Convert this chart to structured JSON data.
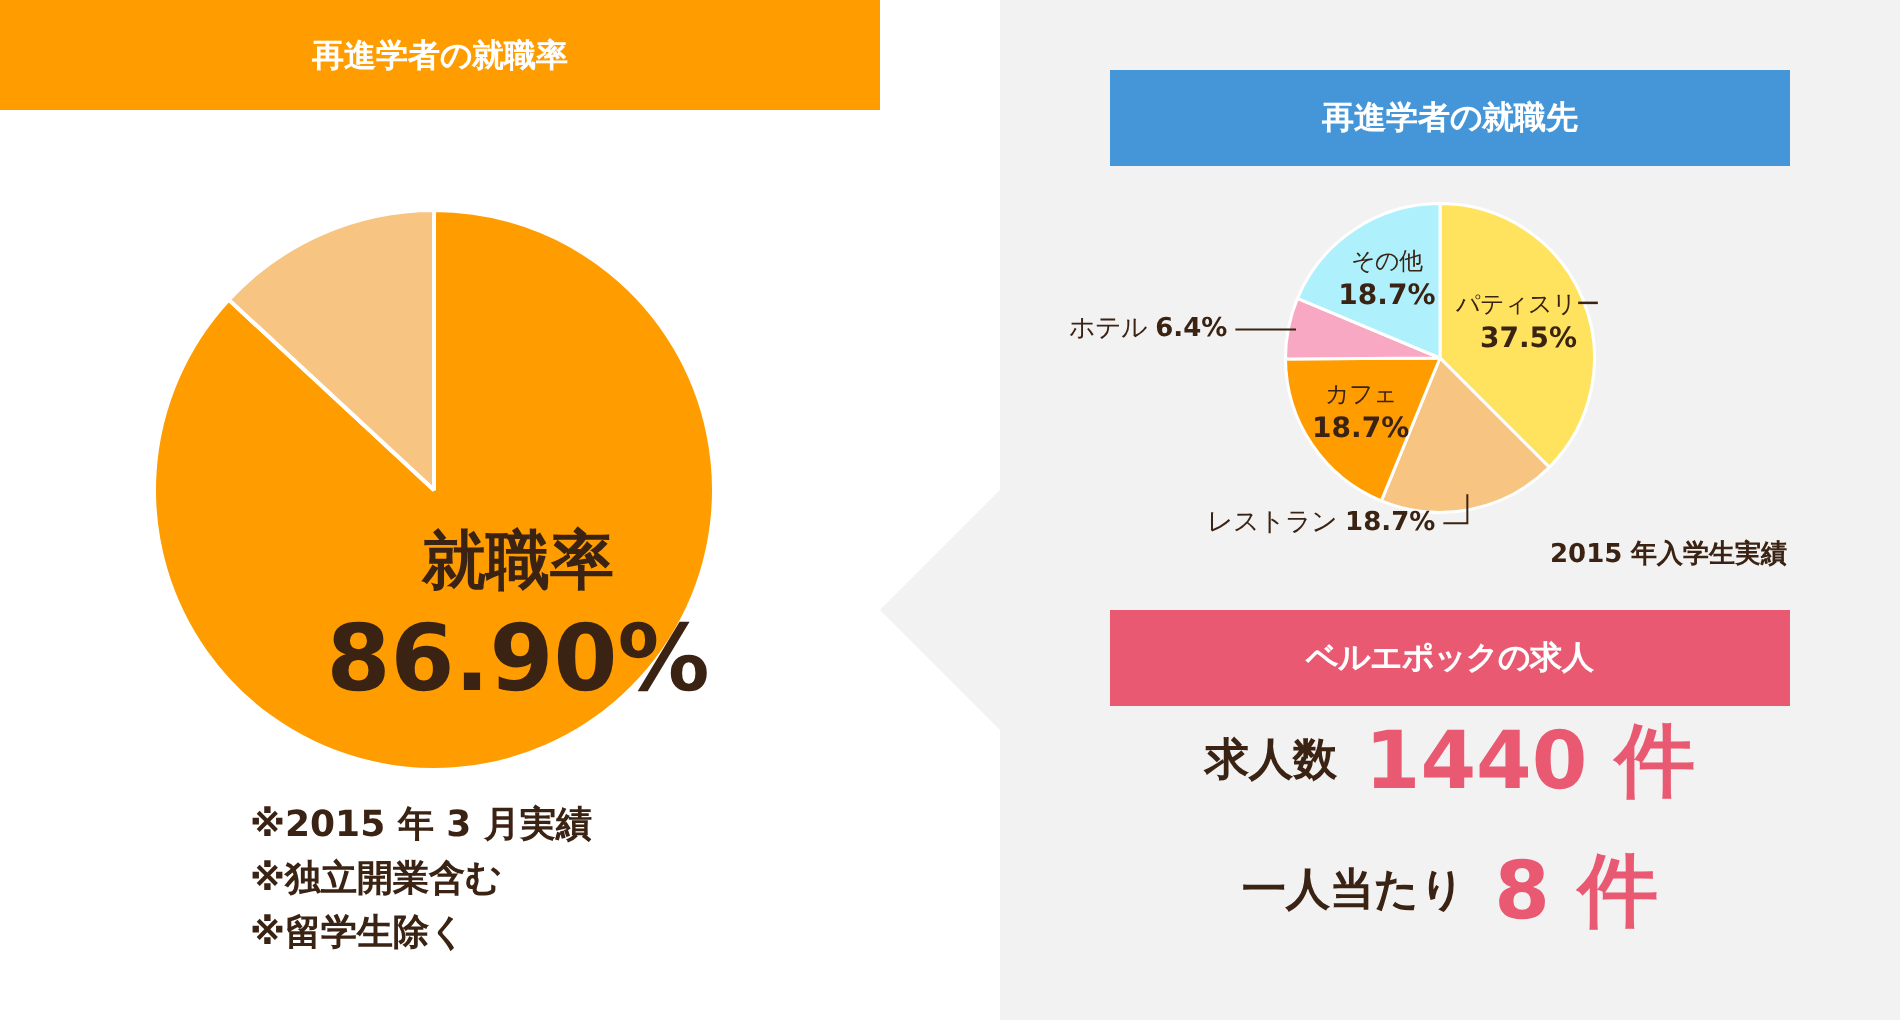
{
  "chart_data": [
    {
      "type": "pie",
      "title": "再進学者の就職率",
      "categories": [
        "就職率",
        null
      ],
      "values": [
        86.9,
        13.1
      ],
      "colors": [
        "#ff9c00",
        "#f8c482"
      ],
      "value_labels": [
        "86.90%",
        null
      ],
      "annotations": [
        "※2015 年 3 月実績",
        "※独立開業含む",
        "※留学生除く"
      ]
    },
    {
      "type": "pie",
      "title": "再進学者の就職先",
      "categories": [
        "パティスリー",
        "レストラン",
        "カフェ",
        "ホテル",
        "その他"
      ],
      "values": [
        37.5,
        18.7,
        18.7,
        6.4,
        18.7
      ],
      "colors": [
        "#ffe35e",
        "#f8c482",
        "#ff9c00",
        "#f9a8c4",
        "#aef0fb"
      ],
      "value_labels": [
        "37.5%",
        "18.7%",
        "18.7%",
        "6.4%",
        "18.7%"
      ],
      "annotations": [
        "2015 年入学生実績"
      ]
    },
    {
      "type": "other",
      "title": "ベルエポックの求人",
      "annotations": [
        "求人数",
        "1440 件",
        "一人当たり",
        "8 件"
      ]
    }
  ]
}
